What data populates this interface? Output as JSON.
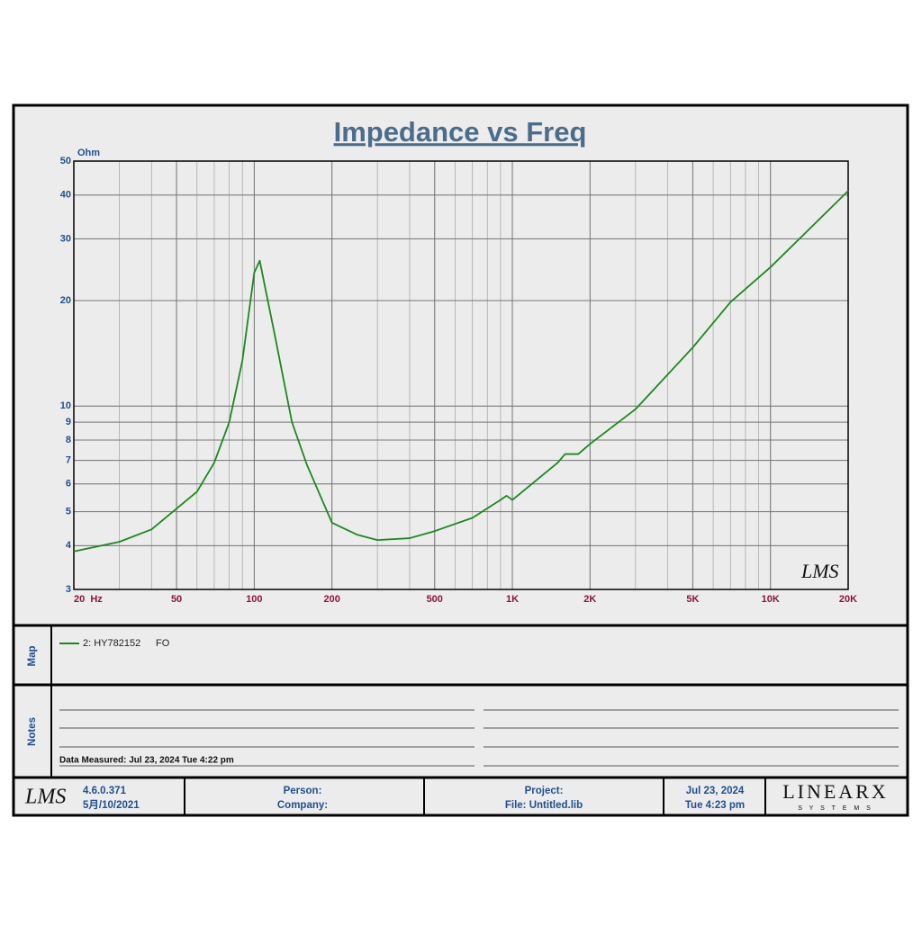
{
  "chart_data": {
    "type": "line",
    "title": "Impedance vs Freq",
    "ylabel": "Ohm",
    "xscale": "log",
    "yscale": "log",
    "grid": true,
    "minor_grid": true,
    "xlim": [
      20,
      20000
    ],
    "ylim": [
      3,
      50
    ],
    "xticks": [
      {
        "value": 20,
        "label": "20  Hz"
      },
      50,
      100,
      200,
      500,
      {
        "value": 1000,
        "label": "1K"
      },
      {
        "value": 2000,
        "label": "2K"
      },
      {
        "value": 5000,
        "label": "5K"
      },
      {
        "value": 10000,
        "label": "10K"
      },
      {
        "value": 20000,
        "label": "20K"
      }
    ],
    "yticks": [
      3,
      4,
      5,
      6,
      7,
      8,
      9,
      10,
      20,
      30,
      40,
      50
    ],
    "x": [
      20,
      30,
      40,
      50,
      60,
      70,
      80,
      90,
      100,
      105,
      120,
      140,
      160,
      200,
      250,
      300,
      400,
      500,
      700,
      900,
      950,
      1000,
      1500,
      1600,
      1800,
      2000,
      3000,
      5000,
      7000,
      10000,
      20000
    ],
    "series": [
      {
        "name": "2: HY782152",
        "color": "#1a8a1a",
        "values": [
          3.85,
          4.1,
          4.45,
          5.1,
          5.7,
          6.9,
          9,
          13.5,
          24,
          26,
          16,
          9,
          6.8,
          4.65,
          4.3,
          4.15,
          4.2,
          4.4,
          4.8,
          5.4,
          5.55,
          5.4,
          6.9,
          7.3,
          7.3,
          7.8,
          9.8,
          14.7,
          19.8,
          24.9,
          41.1
        ]
      }
    ],
    "watermark": "LMS"
  },
  "map": {
    "label": "Map",
    "entry_suffix": "FO"
  },
  "notes": {
    "label": "Notes",
    "measured": "Data Measured: Jul 23, 2024  Tue  4:22 pm"
  },
  "footer": {
    "logo": "LMS",
    "version": "4.6.0.371",
    "build_date": "5月/10/2021",
    "person": "Person:",
    "company": "Company:",
    "project": "Project:",
    "file": "File: Untitled.lib",
    "date": "Jul 23, 2024",
    "time": "Tue  4:23 pm",
    "brand": "LINEARX",
    "brand_sub": "S Y S T E M S"
  }
}
